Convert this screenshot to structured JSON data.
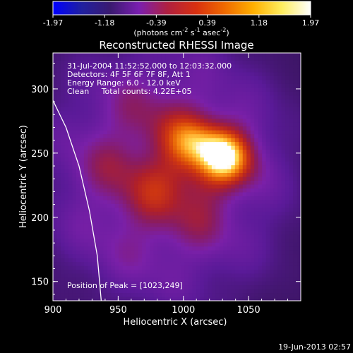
{
  "chart_data": {
    "type": "heatmap",
    "title": "Reconstructed RHESSI Image",
    "xlabel": "Heliocentric X (arcsec)",
    "ylabel": "Heliocentric Y (arcsec)",
    "xlim": [
      900,
      1090
    ],
    "ylim": [
      135,
      328
    ],
    "xticks": [
      900,
      950,
      1000,
      1050
    ],
    "yticks": [
      150,
      200,
      250,
      300
    ],
    "grid": false,
    "colorbar": {
      "range": [
        -1.97,
        1.97
      ],
      "ticks": [
        "-1.97",
        "-1.18",
        "-0.39",
        "0.39",
        "1.18",
        "1.97"
      ],
      "label_main": "(photons cm",
      "label_exp1": "-2",
      "label_mid": " s",
      "label_exp2": "-1",
      "label_after": " asec",
      "label_exp3": "-2",
      "label_end": ")",
      "colormap": [
        "#0000ff",
        "#2020a0",
        "#3a1a70",
        "#7a1fb0",
        "#b02040",
        "#d83010",
        "#f06a00",
        "#ffb000",
        "#ffee60",
        "#ffffff"
      ]
    },
    "annotations": [
      "31-Jul-2004 11:52:52.000 to 12:03:32.000",
      "Detectors: 4F 5F 6F 7F 8F, Att 1",
      "Energy Range: 6.0 - 12.0 keV",
      "Clean     Total counts: 4.22E+05"
    ],
    "peak_label": "Position of Peak = [1023,249]",
    "peak": {
      "x": 1023,
      "y": 249
    },
    "limb_curve": [
      [
        900,
        291
      ],
      [
        910,
        270
      ],
      [
        920,
        240
      ],
      [
        928,
        205
      ],
      [
        934,
        170
      ],
      [
        937,
        135
      ]
    ],
    "date_stamp": "19-Jun-2013 02:57"
  }
}
